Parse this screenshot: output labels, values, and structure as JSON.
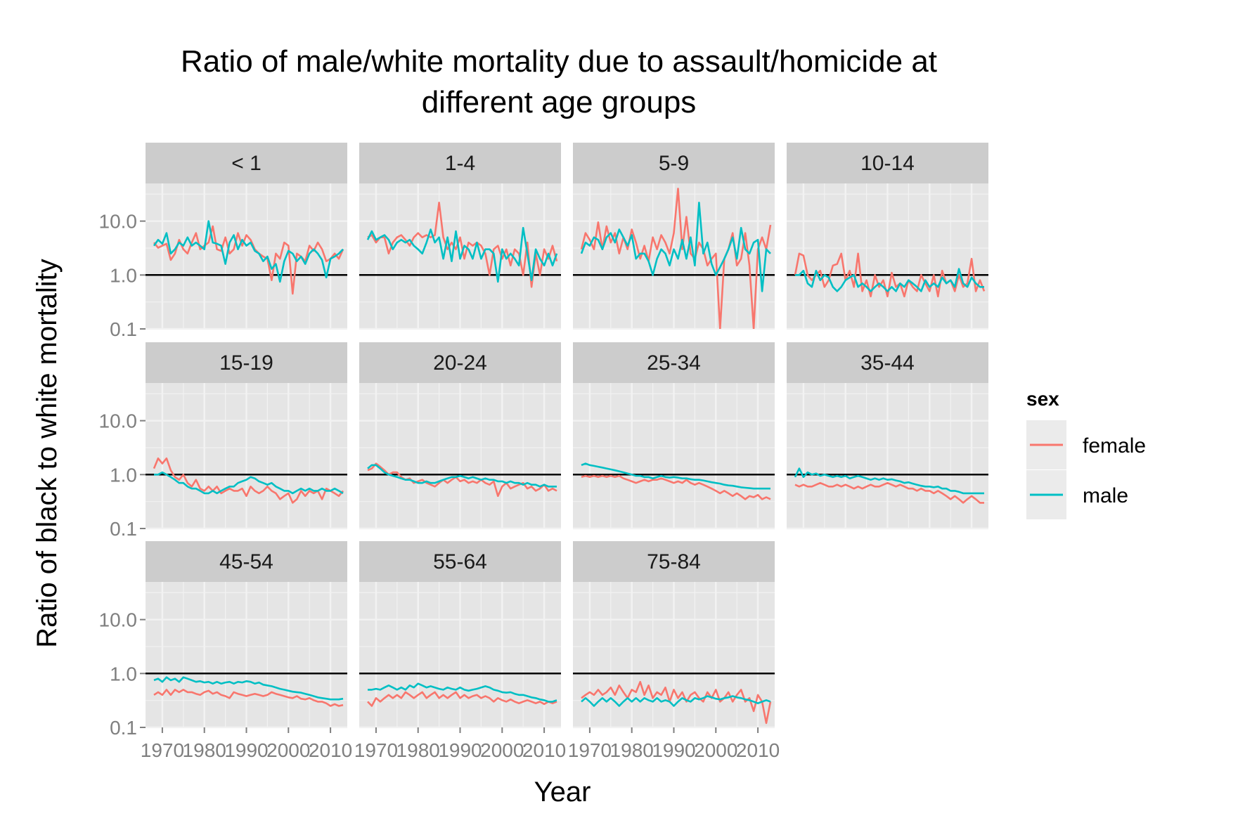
{
  "chart_data": {
    "type": "line",
    "title_line1": "Ratio of male/white mortality due to assault/homicide at",
    "title_line2": "different age groups",
    "xlabel": "Year",
    "ylabel": "Ratio of black to white mortality",
    "y_scale": "log10",
    "ylim": [
      0.1,
      50
    ],
    "xlim": [
      1966,
      2014
    ],
    "x_ticks": [
      "1970",
      "1980",
      "1990",
      "2000",
      "2010"
    ],
    "y_ticks": [
      "0.1",
      "1.0",
      "10.0"
    ],
    "reference_line": 1.0,
    "grid": true,
    "legend": {
      "title": "sex",
      "position": "right",
      "entries": [
        {
          "name": "female",
          "color": "#F8766D"
        },
        {
          "name": "male",
          "color": "#00BFC4"
        }
      ]
    },
    "x_years_start": 1968,
    "x_years_end": 2013,
    "panels": [
      {
        "label": "< 1",
        "female": [
          4,
          3.2,
          3.5,
          3.8,
          1.9,
          2.5,
          4.5,
          3,
          2.5,
          4,
          6,
          3,
          3.5,
          4,
          8,
          3,
          2.8,
          5,
          2.5,
          3,
          6,
          3.5,
          5.5,
          4.5,
          3,
          2.5,
          2.2,
          2,
          0.8,
          2.5,
          2,
          4,
          3.5,
          0.45,
          2.5,
          2.2,
          1.8,
          3.5,
          2.8,
          4,
          3,
          1.8,
          2,
          2.5,
          2,
          3
        ],
        "male": [
          3.5,
          4.5,
          3.8,
          6,
          2.5,
          3,
          4,
          3.5,
          5,
          3.5,
          4,
          3.5,
          3,
          10,
          4,
          3.8,
          3.5,
          1.6,
          4,
          5.5,
          3,
          4.5,
          3.5,
          4,
          2.8,
          2.5,
          1.8,
          2.2,
          1.3,
          1.6,
          0.75,
          1.8,
          2.8,
          2.5,
          1.8,
          2.2,
          1.6,
          2.5,
          3,
          2.5,
          1.9,
          0.9,
          2,
          2.2,
          2.5,
          3
        ]
      },
      {
        "label": "1-4",
        "female": [
          5,
          5.5,
          4,
          5,
          5,
          2.5,
          4,
          5,
          5.5,
          4.5,
          3.5,
          5,
          6,
          5,
          5.5,
          5,
          5.5,
          22,
          5,
          3,
          4,
          3,
          5,
          2,
          4,
          3.5,
          4,
          3.5,
          2.5,
          1,
          3,
          3.5,
          2,
          3,
          1.5,
          3,
          2.5,
          1,
          4,
          0.6,
          2.5,
          1,
          3,
          2,
          3.5,
          1.8
        ],
        "male": [
          4.5,
          6.5,
          4.5,
          5,
          5.5,
          4.5,
          3,
          4,
          4.5,
          4,
          4.5,
          3.5,
          3,
          2.5,
          4,
          7,
          4,
          5,
          2,
          5,
          1.8,
          6.5,
          2,
          3.5,
          3,
          2,
          4,
          2,
          3,
          3,
          2.5,
          0.75,
          3,
          2,
          2.5,
          2,
          1.5,
          7.5,
          2.5,
          0.8,
          3,
          2,
          1.5,
          2.5,
          1.5,
          2.5
        ]
      },
      {
        "label": "5-9",
        "female": [
          3,
          6,
          4.5,
          3,
          9.5,
          3,
          8,
          4,
          6,
          2.5,
          5,
          3,
          7,
          4,
          2,
          3.5,
          1.8,
          5,
          3,
          5.5,
          4,
          2.5,
          6,
          40,
          3,
          12,
          2.5,
          2,
          4,
          3,
          1.5,
          2,
          2.5,
          0.1,
          2,
          3,
          6,
          1.5,
          2,
          6,
          1.5,
          0.1,
          3,
          5,
          3,
          8.5
        ],
        "male": [
          2.5,
          4,
          3.5,
          5,
          4.5,
          3,
          5,
          6,
          4,
          7,
          5,
          3.5,
          5.5,
          2,
          2.5,
          2.5,
          1.8,
          1,
          2,
          3,
          2.5,
          1.5,
          3,
          2,
          4.5,
          2,
          5,
          1.5,
          22,
          2.5,
          4,
          1.6,
          1,
          1.4,
          2,
          3,
          5,
          2,
          7.5,
          3,
          2.5,
          4,
          4.5,
          0.5,
          3,
          2.5
        ]
      },
      {
        "label": "10-14",
        "female": [
          1,
          2.5,
          2.3,
          1,
          0.8,
          1,
          1.2,
          0.6,
          0.8,
          1.5,
          1.6,
          2.5,
          0.8,
          1.2,
          0.6,
          2.5,
          0.5,
          0.8,
          0.4,
          1,
          0.6,
          0.8,
          0.4,
          1.1,
          0.6,
          0.7,
          0.4,
          0.8,
          0.6,
          0.5,
          1,
          0.7,
          0.5,
          1,
          0.4,
          1.2,
          0.7,
          0.8,
          0.5,
          1,
          0.6,
          0.7,
          2,
          0.5,
          0.8,
          0.5
        ],
        "male": [
          1,
          1,
          1.2,
          0.7,
          0.6,
          1.2,
          0.8,
          1,
          0.9,
          0.6,
          0.5,
          0.6,
          0.8,
          0.9,
          1,
          0.6,
          0.7,
          0.6,
          0.5,
          0.6,
          0.7,
          0.6,
          0.5,
          0.6,
          0.5,
          0.7,
          0.6,
          0.8,
          0.7,
          0.6,
          0.5,
          0.8,
          0.6,
          0.7,
          0.6,
          0.9,
          0.7,
          0.8,
          0.6,
          1.3,
          0.7,
          0.6,
          0.9,
          0.7,
          0.6,
          0.6
        ]
      },
      {
        "label": "15-19",
        "female": [
          1.3,
          2,
          1.6,
          2,
          1.2,
          0.9,
          0.8,
          1,
          0.7,
          0.6,
          0.8,
          0.55,
          0.5,
          0.6,
          0.5,
          0.6,
          0.45,
          0.5,
          0.55,
          0.5,
          0.5,
          0.55,
          0.4,
          0.6,
          0.5,
          0.45,
          0.5,
          0.6,
          0.5,
          0.45,
          0.35,
          0.4,
          0.45,
          0.3,
          0.35,
          0.5,
          0.4,
          0.5,
          0.45,
          0.5,
          0.35,
          0.55,
          0.5,
          0.45,
          0.4,
          0.5
        ],
        "male": [
          1,
          1,
          1.1,
          1,
          0.9,
          0.8,
          0.7,
          0.7,
          0.6,
          0.55,
          0.55,
          0.5,
          0.45,
          0.45,
          0.5,
          0.45,
          0.5,
          0.55,
          0.6,
          0.6,
          0.7,
          0.75,
          0.8,
          0.9,
          0.85,
          0.75,
          0.7,
          0.65,
          0.7,
          0.6,
          0.55,
          0.5,
          0.5,
          0.45,
          0.5,
          0.55,
          0.5,
          0.55,
          0.5,
          0.5,
          0.55,
          0.5,
          0.5,
          0.55,
          0.5,
          0.45
        ]
      },
      {
        "label": "20-24",
        "female": [
          1.2,
          1.3,
          1.6,
          1.4,
          1.2,
          1,
          1.1,
          1.1,
          0.9,
          0.8,
          0.85,
          0.7,
          0.75,
          0.8,
          0.7,
          0.65,
          0.6,
          0.7,
          0.8,
          0.7,
          0.8,
          0.9,
          0.75,
          0.8,
          0.7,
          0.75,
          0.7,
          0.8,
          0.7,
          0.65,
          0.75,
          0.4,
          0.6,
          0.7,
          0.55,
          0.6,
          0.65,
          0.7,
          0.55,
          0.6,
          0.5,
          0.55,
          0.65,
          0.5,
          0.55,
          0.5
        ],
        "male": [
          1.3,
          1.5,
          1.5,
          1.3,
          1.1,
          1,
          0.95,
          0.9,
          0.85,
          0.8,
          0.8,
          0.75,
          0.7,
          0.7,
          0.75,
          0.7,
          0.7,
          0.75,
          0.8,
          0.85,
          0.9,
          0.9,
          0.95,
          0.9,
          0.85,
          0.9,
          0.85,
          0.8,
          0.85,
          0.8,
          0.8,
          0.75,
          0.75,
          0.7,
          0.75,
          0.7,
          0.7,
          0.65,
          0.7,
          0.65,
          0.65,
          0.6,
          0.65,
          0.6,
          0.6,
          0.6
        ]
      },
      {
        "label": "25-34",
        "female": [
          0.9,
          0.95,
          0.9,
          0.95,
          0.9,
          0.95,
          0.9,
          0.95,
          0.9,
          0.95,
          0.85,
          0.8,
          0.75,
          0.7,
          0.75,
          0.8,
          0.75,
          0.8,
          0.8,
          0.85,
          0.8,
          0.75,
          0.7,
          0.75,
          0.7,
          0.8,
          0.7,
          0.65,
          0.7,
          0.65,
          0.6,
          0.55,
          0.5,
          0.45,
          0.5,
          0.45,
          0.4,
          0.45,
          0.4,
          0.35,
          0.4,
          0.38,
          0.42,
          0.35,
          0.38,
          0.35
        ],
        "male": [
          1.5,
          1.6,
          1.5,
          1.45,
          1.4,
          1.35,
          1.3,
          1.25,
          1.2,
          1.15,
          1.1,
          1.05,
          1,
          0.95,
          0.95,
          0.9,
          0.9,
          0.85,
          0.9,
          0.95,
          0.9,
          0.88,
          0.9,
          0.88,
          0.85,
          0.85,
          0.82,
          0.8,
          0.8,
          0.78,
          0.75,
          0.72,
          0.7,
          0.68,
          0.65,
          0.63,
          0.62,
          0.6,
          0.58,
          0.57,
          0.56,
          0.55,
          0.55,
          0.55,
          0.55,
          0.55
        ]
      },
      {
        "label": "35-44",
        "female": [
          0.65,
          0.6,
          0.65,
          0.6,
          0.6,
          0.65,
          0.7,
          0.65,
          0.6,
          0.6,
          0.65,
          0.6,
          0.65,
          0.6,
          0.55,
          0.6,
          0.55,
          0.6,
          0.65,
          0.6,
          0.6,
          0.65,
          0.7,
          0.65,
          0.6,
          0.65,
          0.6,
          0.55,
          0.55,
          0.5,
          0.55,
          0.5,
          0.5,
          0.45,
          0.5,
          0.45,
          0.4,
          0.35,
          0.4,
          0.35,
          0.3,
          0.35,
          0.4,
          0.35,
          0.3,
          0.3
        ],
        "male": [
          0.9,
          1.3,
          0.9,
          1.1,
          1,
          1.05,
          0.95,
          1,
          0.95,
          0.9,
          0.95,
          0.9,
          0.95,
          0.85,
          0.9,
          0.95,
          0.9,
          0.85,
          0.8,
          0.85,
          0.8,
          0.85,
          0.8,
          0.82,
          0.78,
          0.75,
          0.7,
          0.72,
          0.68,
          0.65,
          0.62,
          0.6,
          0.6,
          0.58,
          0.6,
          0.55,
          0.55,
          0.5,
          0.5,
          0.48,
          0.45,
          0.45,
          0.45,
          0.45,
          0.45,
          0.45
        ]
      },
      {
        "label": "45-54",
        "female": [
          0.4,
          0.45,
          0.4,
          0.5,
          0.4,
          0.5,
          0.45,
          0.5,
          0.45,
          0.45,
          0.42,
          0.4,
          0.45,
          0.48,
          0.42,
          0.45,
          0.4,
          0.38,
          0.35,
          0.45,
          0.42,
          0.4,
          0.38,
          0.4,
          0.42,
          0.4,
          0.38,
          0.4,
          0.45,
          0.42,
          0.4,
          0.38,
          0.36,
          0.35,
          0.38,
          0.34,
          0.33,
          0.35,
          0.32,
          0.3,
          0.3,
          0.28,
          0.25,
          0.27,
          0.25,
          0.26
        ],
        "male": [
          0.75,
          0.8,
          0.7,
          0.85,
          0.75,
          0.8,
          0.7,
          0.85,
          0.8,
          0.75,
          0.7,
          0.72,
          0.68,
          0.7,
          0.65,
          0.7,
          0.65,
          0.68,
          0.7,
          0.65,
          0.7,
          0.68,
          0.72,
          0.7,
          0.65,
          0.68,
          0.62,
          0.6,
          0.58,
          0.55,
          0.52,
          0.5,
          0.48,
          0.46,
          0.45,
          0.44,
          0.42,
          0.4,
          0.38,
          0.36,
          0.35,
          0.34,
          0.33,
          0.33,
          0.33,
          0.34
        ]
      },
      {
        "label": "55-64",
        "female": [
          0.3,
          0.25,
          0.35,
          0.3,
          0.35,
          0.4,
          0.35,
          0.4,
          0.35,
          0.45,
          0.4,
          0.35,
          0.4,
          0.45,
          0.35,
          0.4,
          0.45,
          0.35,
          0.4,
          0.35,
          0.4,
          0.45,
          0.35,
          0.4,
          0.35,
          0.38,
          0.4,
          0.35,
          0.38,
          0.35,
          0.3,
          0.35,
          0.32,
          0.3,
          0.33,
          0.3,
          0.28,
          0.3,
          0.32,
          0.3,
          0.28,
          0.3,
          0.27,
          0.3,
          0.28,
          0.3
        ],
        "male": [
          0.5,
          0.5,
          0.52,
          0.5,
          0.55,
          0.6,
          0.55,
          0.5,
          0.55,
          0.5,
          0.6,
          0.55,
          0.65,
          0.6,
          0.55,
          0.58,
          0.55,
          0.52,
          0.5,
          0.55,
          0.52,
          0.5,
          0.55,
          0.5,
          0.48,
          0.5,
          0.52,
          0.55,
          0.58,
          0.55,
          0.5,
          0.48,
          0.45,
          0.44,
          0.45,
          0.42,
          0.4,
          0.4,
          0.38,
          0.36,
          0.35,
          0.33,
          0.32,
          0.3,
          0.3,
          0.32
        ]
      },
      {
        "label": "75-84",
        "female": [
          0.35,
          0.4,
          0.45,
          0.4,
          0.5,
          0.4,
          0.45,
          0.55,
          0.4,
          0.6,
          0.45,
          0.35,
          0.5,
          0.45,
          0.7,
          0.4,
          0.6,
          0.35,
          0.45,
          0.4,
          0.55,
          0.3,
          0.5,
          0.35,
          0.45,
          0.3,
          0.4,
          0.45,
          0.35,
          0.3,
          0.45,
          0.35,
          0.5,
          0.3,
          0.35,
          0.45,
          0.3,
          0.4,
          0.5,
          0.3,
          0.35,
          0.2,
          0.4,
          0.3,
          0.12,
          0.3
        ],
        "male": [
          0.3,
          0.35,
          0.3,
          0.25,
          0.3,
          0.35,
          0.3,
          0.35,
          0.3,
          0.25,
          0.3,
          0.35,
          0.3,
          0.35,
          0.3,
          0.35,
          0.32,
          0.3,
          0.35,
          0.3,
          0.32,
          0.3,
          0.25,
          0.3,
          0.35,
          0.32,
          0.3,
          0.35,
          0.33,
          0.35,
          0.38,
          0.36,
          0.34,
          0.33,
          0.35,
          0.36,
          0.38,
          0.36,
          0.35,
          0.33,
          0.32,
          0.3,
          0.28,
          0.3,
          0.32,
          0.3
        ]
      }
    ]
  }
}
